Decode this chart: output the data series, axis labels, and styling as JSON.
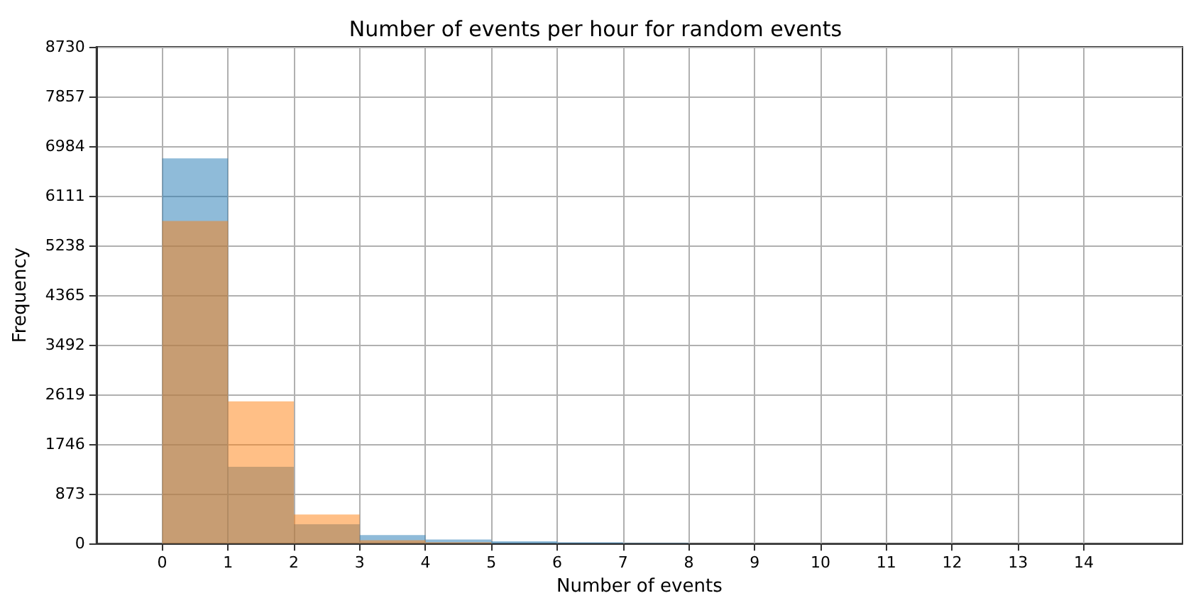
{
  "chart_data": {
    "type": "histogram",
    "title": "Number of events per hour for random events",
    "xlabel": "Number of events",
    "ylabel": "Frequency",
    "bins": [
      0,
      1,
      2,
      3,
      4,
      5,
      6,
      7,
      8
    ],
    "series": [
      {
        "color": "#1f77b4",
        "values": [
          6770,
          1350,
          340,
          150,
          70,
          40,
          20,
          10
        ]
      },
      {
        "color": "#ff7f0e",
        "values": [
          5670,
          2500,
          510,
          60,
          20,
          0,
          0,
          0
        ]
      }
    ],
    "xlim": [
      -1,
      15.5
    ],
    "xticks": [
      0,
      1,
      2,
      3,
      4,
      5,
      6,
      7,
      8,
      9,
      10,
      11,
      12,
      13,
      14
    ],
    "ylim": [
      0,
      8730
    ],
    "yticks": [
      0,
      873,
      1746,
      2619,
      3492,
      4365,
      5238,
      6111,
      6984,
      7857,
      8730
    ],
    "grid": true
  }
}
